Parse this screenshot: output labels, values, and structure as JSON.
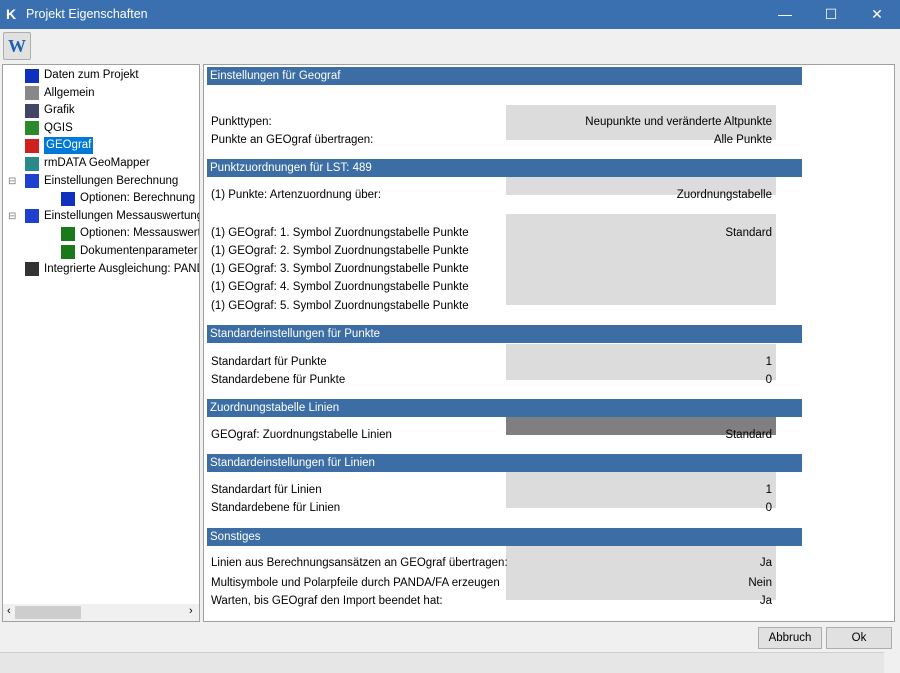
{
  "window": {
    "title": "Projekt Eigenschaften",
    "minimize": "—",
    "maximize": "☐",
    "close": "✕"
  },
  "toolbar": {
    "w_button": "W"
  },
  "tree": [
    {
      "label": "Daten zum Projekt",
      "icon": "project-data-icon",
      "level": 0
    },
    {
      "label": "Allgemein",
      "icon": "general-icon",
      "level": 0
    },
    {
      "label": "Grafik",
      "icon": "graphics-icon",
      "level": 0
    },
    {
      "label": "QGIS",
      "icon": "qgis-icon",
      "level": 0
    },
    {
      "label": "GEOgraf",
      "icon": "geograf-icon",
      "level": 0,
      "selected": true
    },
    {
      "label": "rmDATA GeoMapper",
      "icon": "geomapper-icon",
      "level": 0
    },
    {
      "label": "Einstellungen Berechnung",
      "icon": "calculation-icon",
      "level": 0,
      "expanded": true
    },
    {
      "label": "Optionen: Berechnung",
      "icon": "options-icon",
      "level": 1
    },
    {
      "label": "Einstellungen Messauswertung",
      "icon": "survey-icon",
      "level": 0,
      "expanded": true
    },
    {
      "label": "Optionen: Messauswertung",
      "icon": "options-icon",
      "level": 1
    },
    {
      "label": "Dokumentenparameter (Vorlagen)",
      "icon": "document-params-icon",
      "level": 1
    },
    {
      "label": "Integrierte Ausgleichung: PANDA",
      "icon": "panda-icon",
      "level": 0
    }
  ],
  "sections": [
    {
      "header": "Einstellungen für Geograf",
      "rows": [
        {
          "label": "Punkttypen:",
          "value": "Neupunkte und veränderte Altpunkte"
        },
        {
          "label": "Punkte an GEOgraf übertragen:",
          "value": "Alle Punkte"
        }
      ]
    },
    {
      "header": "Punktzuordnungen für LST: 489",
      "rows": [
        {
          "label": "(1) Punkte: Artenzuordnung über:",
          "value": "Zuordnungstabelle"
        },
        {
          "label": "(1) GEOgraf: 1. Symbol Zuordnungstabelle Punkte",
          "value": "Standard"
        },
        {
          "label": "(1) GEOgraf: 2. Symbol Zuordnungstabelle Punkte",
          "value": ""
        },
        {
          "label": "(1) GEOgraf: 3. Symbol Zuordnungstabelle Punkte",
          "value": ""
        },
        {
          "label": "(1) GEOgraf: 4. Symbol Zuordnungstabelle Punkte",
          "value": ""
        },
        {
          "label": "(1) GEOgraf: 5. Symbol Zuordnungstabelle Punkte",
          "value": ""
        }
      ]
    },
    {
      "header": "Standardeinstellungen für Punkte",
      "rows": [
        {
          "label": "Standardart für Punkte",
          "value": "1"
        },
        {
          "label": "Standardebene für Punkte",
          "value": "0"
        }
      ]
    },
    {
      "header": "Zuordnungstabelle Linien",
      "rows": [
        {
          "label": "GEOgraf: Zuordnungstabelle Linien",
          "value": "Standard",
          "selected": true
        }
      ]
    },
    {
      "header": "Standardeinstellungen für Linien",
      "rows": [
        {
          "label": "Standardart für Linien",
          "value": "1"
        },
        {
          "label": "Standardebene für Linien",
          "value": "0"
        }
      ]
    },
    {
      "header": "Sonstiges",
      "rows": [
        {
          "label": "Linien aus Berechnungsansätzen an GEOgraf übertragen:",
          "value": "Ja"
        },
        {
          "label": "Multisymbole und Polarpfeile durch PANDA/FA erzeugen",
          "value": "Nein"
        },
        {
          "label": "Warten, bis GEOgraf den Import beendet hat:",
          "value": "Ja"
        }
      ]
    }
  ],
  "buttons": {
    "cancel": "Abbruch",
    "ok": "Ok"
  },
  "colors": {
    "title_bar": "#3a6fb0",
    "section_header": "#3c6ea5",
    "value_box": "#dcdcdc",
    "selected_value": "#7f7f7f",
    "tree_selection": "#0078d7"
  }
}
